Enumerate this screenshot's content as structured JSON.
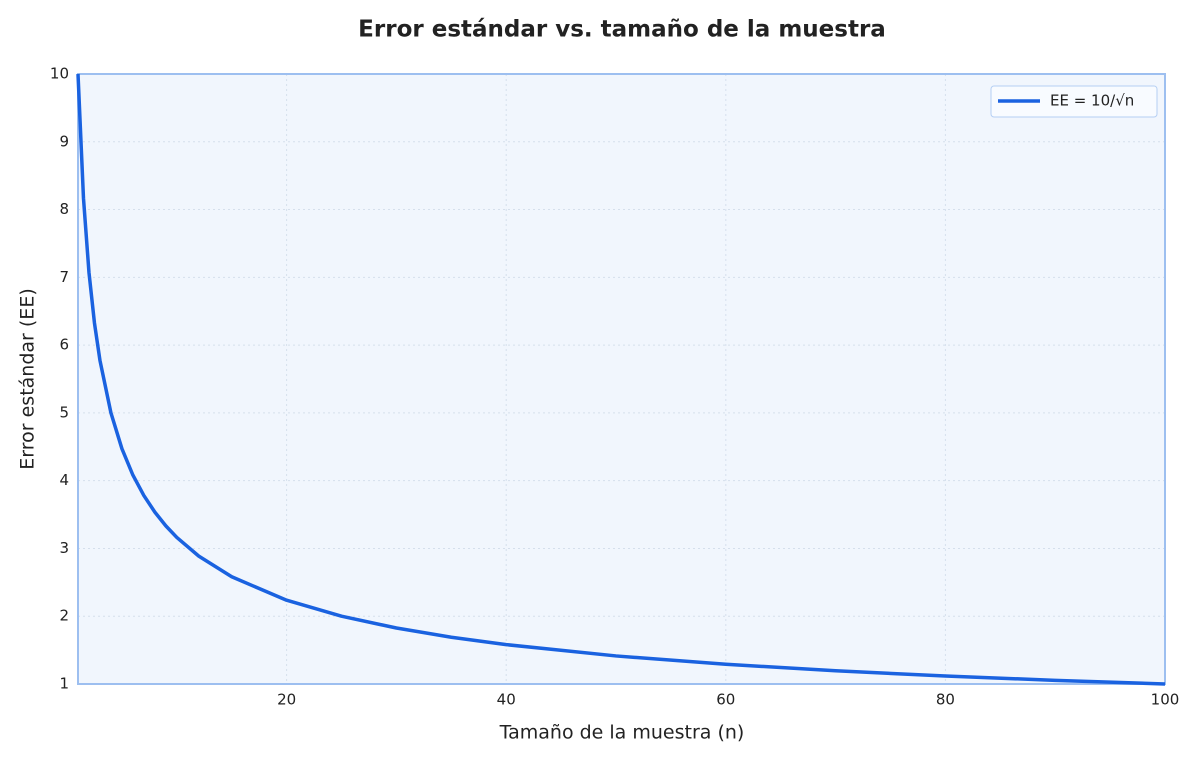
{
  "chart_data": {
    "type": "line",
    "title": "Error estándar vs. tamaño de la muestra",
    "xlabel": "Tamaño de la muestra (n)",
    "ylabel": "Error estándar (EE)",
    "x": [
      1,
      1.5,
      2,
      2.5,
      3,
      4,
      5,
      6,
      7,
      8,
      9,
      10,
      12,
      15,
      20,
      25,
      30,
      35,
      40,
      50,
      60,
      70,
      80,
      90,
      100
    ],
    "series": [
      {
        "name": "EE = 10/√n",
        "color": "#1a62e0",
        "values": [
          10,
          8.165,
          7.071,
          6.325,
          5.774,
          5,
          4.472,
          4.082,
          3.78,
          3.536,
          3.333,
          3.162,
          2.887,
          2.582,
          2.236,
          2,
          1.826,
          1.69,
          1.581,
          1.414,
          1.291,
          1.195,
          1.118,
          1.054,
          1
        ]
      }
    ],
    "xlim": [
      1,
      100
    ],
    "xticks": [
      20,
      40,
      60,
      80,
      100
    ],
    "ylim": [
      1,
      10
    ],
    "yticks": [
      1,
      2,
      3,
      4,
      5,
      6,
      7,
      8,
      9,
      10
    ],
    "grid": true,
    "legend": "upper right"
  }
}
